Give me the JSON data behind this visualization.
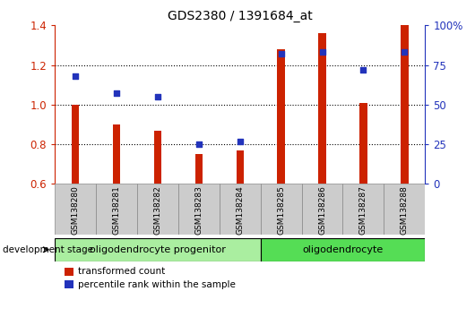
{
  "title": "GDS2380 / 1391684_at",
  "samples": [
    "GSM138280",
    "GSM138281",
    "GSM138282",
    "GSM138283",
    "GSM138284",
    "GSM138285",
    "GSM138286",
    "GSM138287",
    "GSM138288"
  ],
  "transformed_count": [
    1.0,
    0.9,
    0.87,
    0.75,
    0.77,
    1.28,
    1.36,
    1.01,
    1.4
  ],
  "percentile_rank": [
    68,
    57,
    55,
    25,
    27,
    82,
    83,
    72,
    83
  ],
  "ylim_left": [
    0.6,
    1.4
  ],
  "ylim_right": [
    0,
    100
  ],
  "bar_color": "#cc2200",
  "scatter_color": "#2233bb",
  "left_axis_color": "#cc2200",
  "right_axis_color": "#2233bb",
  "groups": [
    {
      "label": "oligodendrocyte progenitor",
      "start": 0,
      "end": 4,
      "color": "#aaeea0"
    },
    {
      "label": "oligodendrocyte",
      "start": 5,
      "end": 8,
      "color": "#55dd55"
    }
  ],
  "legend_bar_label": "transformed count",
  "legend_scatter_label": "percentile rank within the sample",
  "dev_stage_label": "development stage",
  "yticks_left": [
    0.6,
    0.8,
    1.0,
    1.2,
    1.4
  ],
  "yticks_right": [
    0,
    25,
    50,
    75,
    100
  ],
  "ytick_labels_right": [
    "0",
    "25",
    "50",
    "75",
    "100%"
  ],
  "grid_lines": [
    0.8,
    1.0,
    1.2
  ],
  "label_box_color": "#cccccc",
  "label_box_edge": "#888888"
}
